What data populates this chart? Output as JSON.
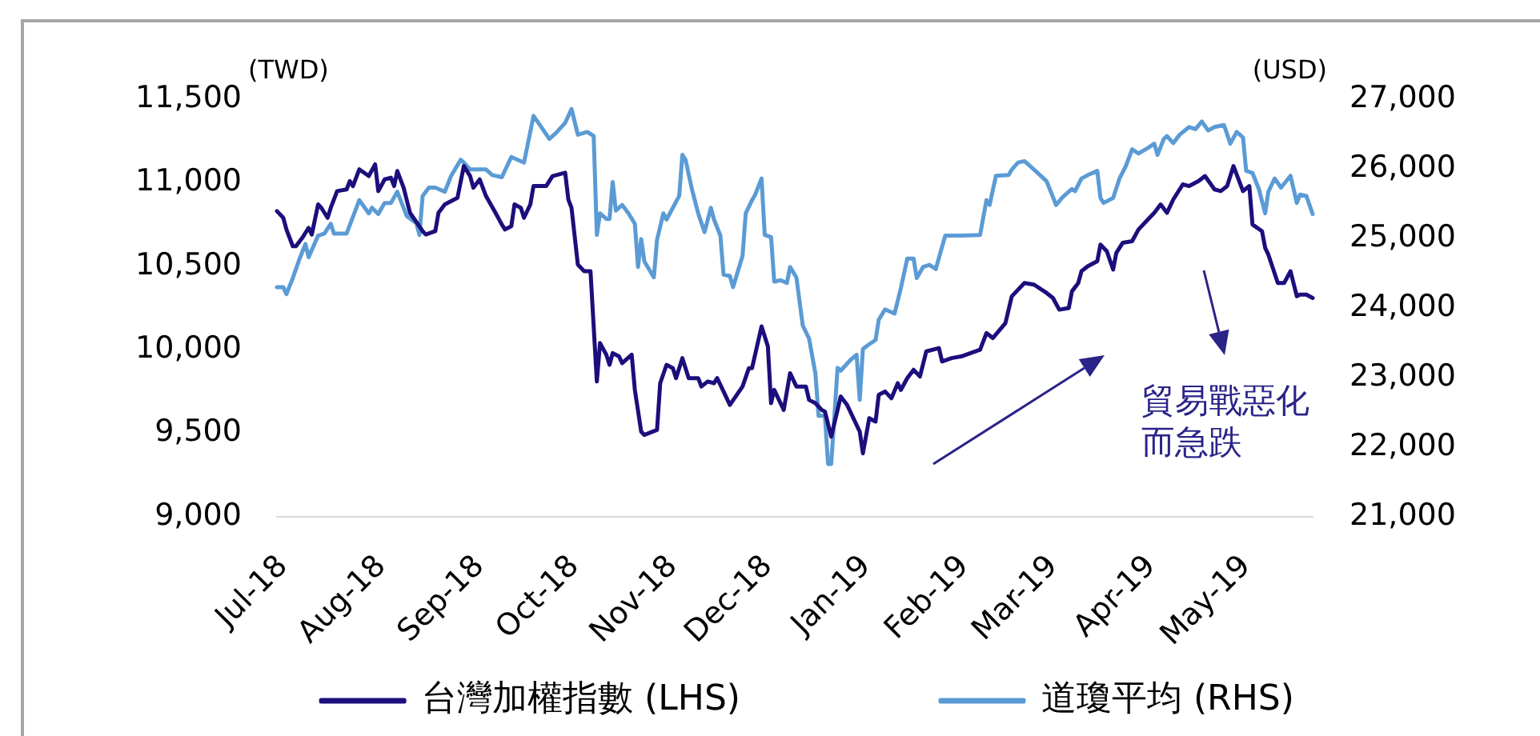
{
  "chart_data": {
    "type": "line",
    "ylabel": "(TWD)",
    "y2label": "(USD)",
    "annotations": [
      "貿易戰惡化而急跌"
    ],
    "legend": "bottom",
    "xlim": [
      "2018-06-29",
      "2019-05-22"
    ],
    "xticks": [
      {
        "value": "2018-07-01",
        "label": "Jul-18"
      },
      {
        "value": "2018-08-01",
        "label": "Aug-18"
      },
      {
        "value": "2018-09-01",
        "label": "Sep-18"
      },
      {
        "value": "2018-10-01",
        "label": "Oct-18"
      },
      {
        "value": "2018-11-01",
        "label": "Nov-18"
      },
      {
        "value": "2018-12-01",
        "label": "Dec-18"
      },
      {
        "value": "2019-01-01",
        "label": "Jan-19"
      },
      {
        "value": "2019-02-01",
        "label": "Feb-19"
      },
      {
        "value": "2019-03-01",
        "label": "Mar-19"
      },
      {
        "value": "2019-04-01",
        "label": "Apr-19"
      },
      {
        "value": "2019-05-01",
        "label": "May-19"
      }
    ],
    "ylim": [
      9000,
      11500
    ],
    "yticks": [
      {
        "value": 9000,
        "label": "9,000"
      },
      {
        "value": 9500,
        "label": "9,500"
      },
      {
        "value": 10000,
        "label": "10,000"
      },
      {
        "value": 10500,
        "label": "10,500"
      },
      {
        "value": 11000,
        "label": "11,000"
      },
      {
        "value": 11500,
        "label": "11,500"
      }
    ],
    "y2lim": [
      21000,
      27000
    ],
    "y2ticks": [
      {
        "value": 21000,
        "label": "21,000"
      },
      {
        "value": 22000,
        "label": "22,000"
      },
      {
        "value": 23000,
        "label": "23,000"
      },
      {
        "value": 24000,
        "label": "24,000"
      },
      {
        "value": 25000,
        "label": "25,000"
      },
      {
        "value": 26000,
        "label": "26,000"
      },
      {
        "value": 27000,
        "label": "27,000"
      }
    ],
    "series": [
      {
        "name": "台灣加權指數 (LHS)",
        "color": "#1c0e7c",
        "x": [
          "2018-06-29",
          "2018-07-01",
          "2018-07-02",
          "2018-07-04",
          "2018-07-05",
          "2018-07-07",
          "2018-07-09",
          "2018-07-10",
          "2018-07-12",
          "2018-07-13",
          "2018-07-15",
          "2018-07-16",
          "2018-07-18",
          "2018-07-21",
          "2018-07-22",
          "2018-07-23",
          "2018-07-25",
          "2018-07-28",
          "2018-07-30",
          "2018-07-31",
          "2018-08-02",
          "2018-08-04",
          "2018-08-05",
          "2018-08-06",
          "2018-08-08",
          "2018-08-10",
          "2018-08-14",
          "2018-08-15",
          "2018-08-18",
          "2018-08-19",
          "2018-08-21",
          "2018-08-25",
          "2018-08-27",
          "2018-08-29",
          "2018-08-30",
          "2018-09-01",
          "2018-09-03",
          "2018-09-06",
          "2018-09-08",
          "2018-09-09",
          "2018-09-11",
          "2018-09-12",
          "2018-09-14",
          "2018-09-15",
          "2018-09-17",
          "2018-09-18",
          "2018-09-22",
          "2018-09-24",
          "2018-09-28",
          "2018-09-29",
          "2018-09-30",
          "2018-10-02",
          "2018-10-04",
          "2018-10-06",
          "2018-10-08",
          "2018-10-09",
          "2018-10-11",
          "2018-10-12",
          "2018-10-13",
          "2018-10-15",
          "2018-10-16",
          "2018-10-19",
          "2018-10-20",
          "2018-10-22",
          "2018-10-23",
          "2018-10-27",
          "2018-10-28",
          "2018-10-30",
          "2018-11-01",
          "2018-11-02",
          "2018-11-04",
          "2018-11-06",
          "2018-11-09",
          "2018-11-10",
          "2018-11-12",
          "2018-11-14",
          "2018-11-15",
          "2018-11-17",
          "2018-11-19",
          "2018-11-23",
          "2018-11-25",
          "2018-11-26",
          "2018-11-29",
          "2018-12-01",
          "2018-12-02",
          "2018-12-03",
          "2018-12-06",
          "2018-12-08",
          "2018-12-10",
          "2018-12-13",
          "2018-12-14",
          "2018-12-16",
          "2018-12-18",
          "2018-12-19",
          "2018-12-21",
          "2018-12-24",
          "2018-12-26",
          "2018-12-30",
          "2018-12-31",
          "2019-01-02",
          "2019-01-04",
          "2019-01-05",
          "2019-01-07",
          "2019-01-09",
          "2019-01-11",
          "2019-01-12",
          "2019-01-14",
          "2019-01-16",
          "2019-01-18",
          "2019-01-20",
          "2019-01-24",
          "2019-01-25",
          "2019-01-28",
          "2019-01-31",
          "2019-02-06",
          "2019-02-08",
          "2019-02-10",
          "2019-02-14",
          "2019-02-16",
          "2019-02-20",
          "2019-02-23",
          "2019-02-27",
          "2019-03-01",
          "2019-03-03",
          "2019-03-06",
          "2019-03-07",
          "2019-03-09",
          "2019-03-10",
          "2019-03-12",
          "2019-03-15",
          "2019-03-16",
          "2019-03-18",
          "2019-03-20",
          "2019-03-21",
          "2019-03-23",
          "2019-03-26",
          "2019-03-28",
          "2019-03-31",
          "2019-04-02",
          "2019-04-04",
          "2019-04-06",
          "2019-04-08",
          "2019-04-11",
          "2019-04-13",
          "2019-04-16",
          "2019-04-18",
          "2019-04-21",
          "2019-04-23",
          "2019-04-25",
          "2019-04-27",
          "2019-04-30",
          "2019-05-02",
          "2019-05-03",
          "2019-05-06",
          "2019-05-07",
          "2019-05-08",
          "2019-05-11",
          "2019-05-13",
          "2019-05-15",
          "2019-05-17",
          "2019-05-18",
          "2019-05-20",
          "2019-05-22"
        ],
        "values": [
          10830,
          10790,
          10720,
          10620,
          10620,
          10670,
          10730,
          10690,
          10870,
          10850,
          10790,
          10850,
          10950,
          10960,
          11010,
          10980,
          11080,
          11040,
          11110,
          10950,
          11020,
          11030,
          10980,
          11070,
          10970,
          10820,
          10710,
          10690,
          10710,
          10820,
          10870,
          10910,
          11100,
          11040,
          10970,
          11020,
          10920,
          10820,
          10750,
          10720,
          10740,
          10870,
          10850,
          10790,
          10870,
          10980,
          10980,
          11040,
          11060,
          10900,
          10850,
          10510,
          10470,
          10470,
          9810,
          10040,
          9970,
          9910,
          9980,
          9960,
          9920,
          9970,
          9760,
          9510,
          9490,
          9520,
          9800,
          9910,
          9890,
          9830,
          9950,
          9830,
          9830,
          9780,
          9810,
          9800,
          9830,
          9750,
          9670,
          9780,
          9890,
          9890,
          10140,
          10020,
          9680,
          9760,
          9640,
          9860,
          9780,
          9780,
          9700,
          9680,
          9640,
          9630,
          9480,
          9720,
          9670,
          9510,
          9380,
          9590,
          9570,
          9730,
          9750,
          9710,
          9800,
          9760,
          9830,
          9880,
          9840,
          9990,
          10010,
          9930,
          9950,
          9960,
          10000,
          10100,
          10070,
          10160,
          10320,
          10400,
          10390,
          10340,
          10310,
          10240,
          10250,
          10350,
          10400,
          10470,
          10500,
          10530,
          10630,
          10590,
          10480,
          10580,
          10640,
          10650,
          10720,
          10780,
          10820,
          10870,
          10820,
          10900,
          10990,
          10980,
          11010,
          11040,
          10960,
          10950,
          10980,
          11100,
          10950,
          10980,
          10750,
          10710,
          10610,
          10570,
          10400,
          10400,
          10470,
          10320,
          10330,
          10330,
          10310
        ]
      },
      {
        "name": "道瓊平均 (RHS)",
        "color": "#5b9bd5",
        "axis": "y2",
        "x": [
          "2018-06-29",
          "2018-07-01",
          "2018-07-02",
          "2018-07-04",
          "2018-07-06",
          "2018-07-08",
          "2018-07-09",
          "2018-07-12",
          "2018-07-14",
          "2018-07-16",
          "2018-07-17",
          "2018-07-21",
          "2018-07-25",
          "2018-07-28",
          "2018-07-29",
          "2018-07-31",
          "2018-08-02",
          "2018-08-04",
          "2018-08-06",
          "2018-08-09",
          "2018-08-12",
          "2018-08-13",
          "2018-08-14",
          "2018-08-16",
          "2018-08-18",
          "2018-08-21",
          "2018-08-23",
          "2018-08-26",
          "2018-08-27",
          "2018-08-29",
          "2018-09-03",
          "2018-09-05",
          "2018-09-08",
          "2018-09-11",
          "2018-09-13",
          "2018-09-15",
          "2018-09-18",
          "2018-09-20",
          "2018-09-23",
          "2018-09-25",
          "2018-09-28",
          "2018-09-30",
          "2018-10-02",
          "2018-10-05",
          "2018-10-07",
          "2018-10-08",
          "2018-10-09",
          "2018-10-11",
          "2018-10-12",
          "2018-10-13",
          "2018-10-14",
          "2018-10-16",
          "2018-10-18",
          "2018-10-20",
          "2018-10-21",
          "2018-10-22",
          "2018-10-23",
          "2018-10-26",
          "2018-10-27",
          "2018-10-29",
          "2018-10-30",
          "2018-11-01",
          "2018-11-03",
          "2018-11-04",
          "2018-11-05",
          "2018-11-07",
          "2018-11-09",
          "2018-11-11",
          "2018-11-13",
          "2018-11-14",
          "2018-11-16",
          "2018-11-17",
          "2018-11-19",
          "2018-11-20",
          "2018-11-23",
          "2018-11-24",
          "2018-11-26",
          "2018-11-27",
          "2018-11-29",
          "2018-11-30",
          "2018-12-02",
          "2018-12-03",
          "2018-12-05",
          "2018-12-07",
          "2018-12-08",
          "2018-12-10",
          "2018-12-12",
          "2018-12-14",
          "2018-12-16",
          "2018-12-17",
          "2018-12-19",
          "2018-12-20",
          "2018-12-21",
          "2018-12-23",
          "2018-12-24",
          "2018-12-27",
          "2018-12-29",
          "2018-12-30",
          "2018-12-31",
          "2019-01-02",
          "2019-01-04",
          "2019-01-05",
          "2019-01-07",
          "2019-01-10",
          "2019-01-12",
          "2019-01-14",
          "2019-01-16",
          "2019-01-17",
          "2019-01-19",
          "2019-01-21",
          "2019-01-23",
          "2019-01-26",
          "2019-01-31",
          "2019-02-06",
          "2019-02-08",
          "2019-02-09",
          "2019-02-11",
          "2019-02-15",
          "2019-02-16",
          "2019-02-18",
          "2019-02-20",
          "2019-02-23",
          "2019-02-27",
          "2019-03-02",
          "2019-03-04",
          "2019-03-07",
          "2019-03-08",
          "2019-03-10",
          "2019-03-12",
          "2019-03-15",
          "2019-03-16",
          "2019-03-17",
          "2019-03-20",
          "2019-03-22",
          "2019-03-24",
          "2019-03-26",
          "2019-03-28",
          "2019-03-31",
          "2019-04-02",
          "2019-04-03",
          "2019-04-05",
          "2019-04-06",
          "2019-04-08",
          "2019-04-10",
          "2019-04-13",
          "2019-04-15",
          "2019-04-17",
          "2019-04-19",
          "2019-04-21",
          "2019-04-24",
          "2019-04-26",
          "2019-04-28",
          "2019-04-30",
          "2019-05-01",
          "2019-05-03",
          "2019-05-05",
          "2019-05-07",
          "2019-05-08",
          "2019-05-10",
          "2019-05-12",
          "2019-05-15",
          "2019-05-17",
          "2019-05-18",
          "2019-05-20",
          "2019-05-22"
        ],
        "values": [
          24300,
          24300,
          24200,
          24430,
          24690,
          24920,
          24730,
          25040,
          25070,
          25210,
          25070,
          25070,
          25550,
          25360,
          25440,
          25350,
          25510,
          25510,
          25670,
          25320,
          25220,
          25050,
          25610,
          25730,
          25730,
          25670,
          25900,
          26130,
          26090,
          25990,
          25990,
          25910,
          25880,
          26170,
          26130,
          26090,
          26760,
          26630,
          26430,
          26510,
          26660,
          26860,
          26490,
          26530,
          26470,
          25050,
          25360,
          25280,
          25280,
          25810,
          25400,
          25480,
          25360,
          25210,
          24590,
          24990,
          24670,
          24440,
          24980,
          25360,
          25270,
          25440,
          25610,
          26200,
          26130,
          25710,
          25360,
          25090,
          25440,
          25270,
          25040,
          24480,
          24460,
          24300,
          24750,
          25360,
          25550,
          25630,
          25860,
          25050,
          25020,
          24380,
          24400,
          24360,
          24590,
          24440,
          23750,
          23560,
          23060,
          22450,
          22450,
          21760,
          21760,
          23140,
          23100,
          23250,
          23330,
          22680,
          23410,
          23480,
          23540,
          23830,
          23980,
          23920,
          24290,
          24710,
          24710,
          24430,
          24590,
          24620,
          24560,
          25040,
          25040,
          25050,
          25550,
          25480,
          25900,
          25910,
          25990,
          26090,
          26110,
          25990,
          25820,
          25480,
          25590,
          25710,
          25680,
          25860,
          25910,
          25970,
          25580,
          25510,
          25580,
          25860,
          26040,
          26280,
          26220,
          26300,
          26360,
          26200,
          26430,
          26470,
          26370,
          26490,
          26600,
          26570,
          26680,
          26550,
          26600,
          26630,
          26360,
          26530,
          26450,
          25970,
          25940,
          25710,
          25360,
          25670,
          25860,
          25730,
          25900,
          25510,
          25630,
          25610,
          25350
        ]
      }
    ]
  }
}
